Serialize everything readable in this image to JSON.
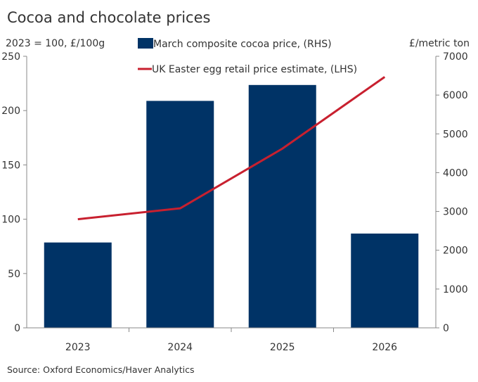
{
  "chart_data": {
    "type": "bar+line",
    "title": "Cocoa and chocolate prices",
    "ylabel_left": "2023 = 100, £/100g",
    "ylabel_right": "£/metric ton",
    "categories": [
      "2023",
      "2024",
      "2025",
      "2026"
    ],
    "ylim_left": [
      0,
      250
    ],
    "yticks_left": [
      "0",
      "50",
      "100",
      "150",
      "200",
      "250"
    ],
    "ylim_right": [
      0,
      7000
    ],
    "yticks_right": [
      "0",
      "1000",
      "2000",
      "3000",
      "4000",
      "5000",
      "6000",
      "7000"
    ],
    "grid": false,
    "legend_placement": "top",
    "series": [
      {
        "name": "March composite cocoa price, (RHS)",
        "type": "bar",
        "axis": "right",
        "color": "#003366",
        "values": [
          2200,
          5850,
          6260,
          2430
        ]
      },
      {
        "name": "UK Easter egg retail price estimate, (LHS)",
        "type": "line",
        "axis": "left",
        "color": "#C8202F",
        "values": [
          100,
          110,
          165,
          231
        ]
      }
    ],
    "source": "Source: Oxford Economics/Haver Analytics"
  }
}
